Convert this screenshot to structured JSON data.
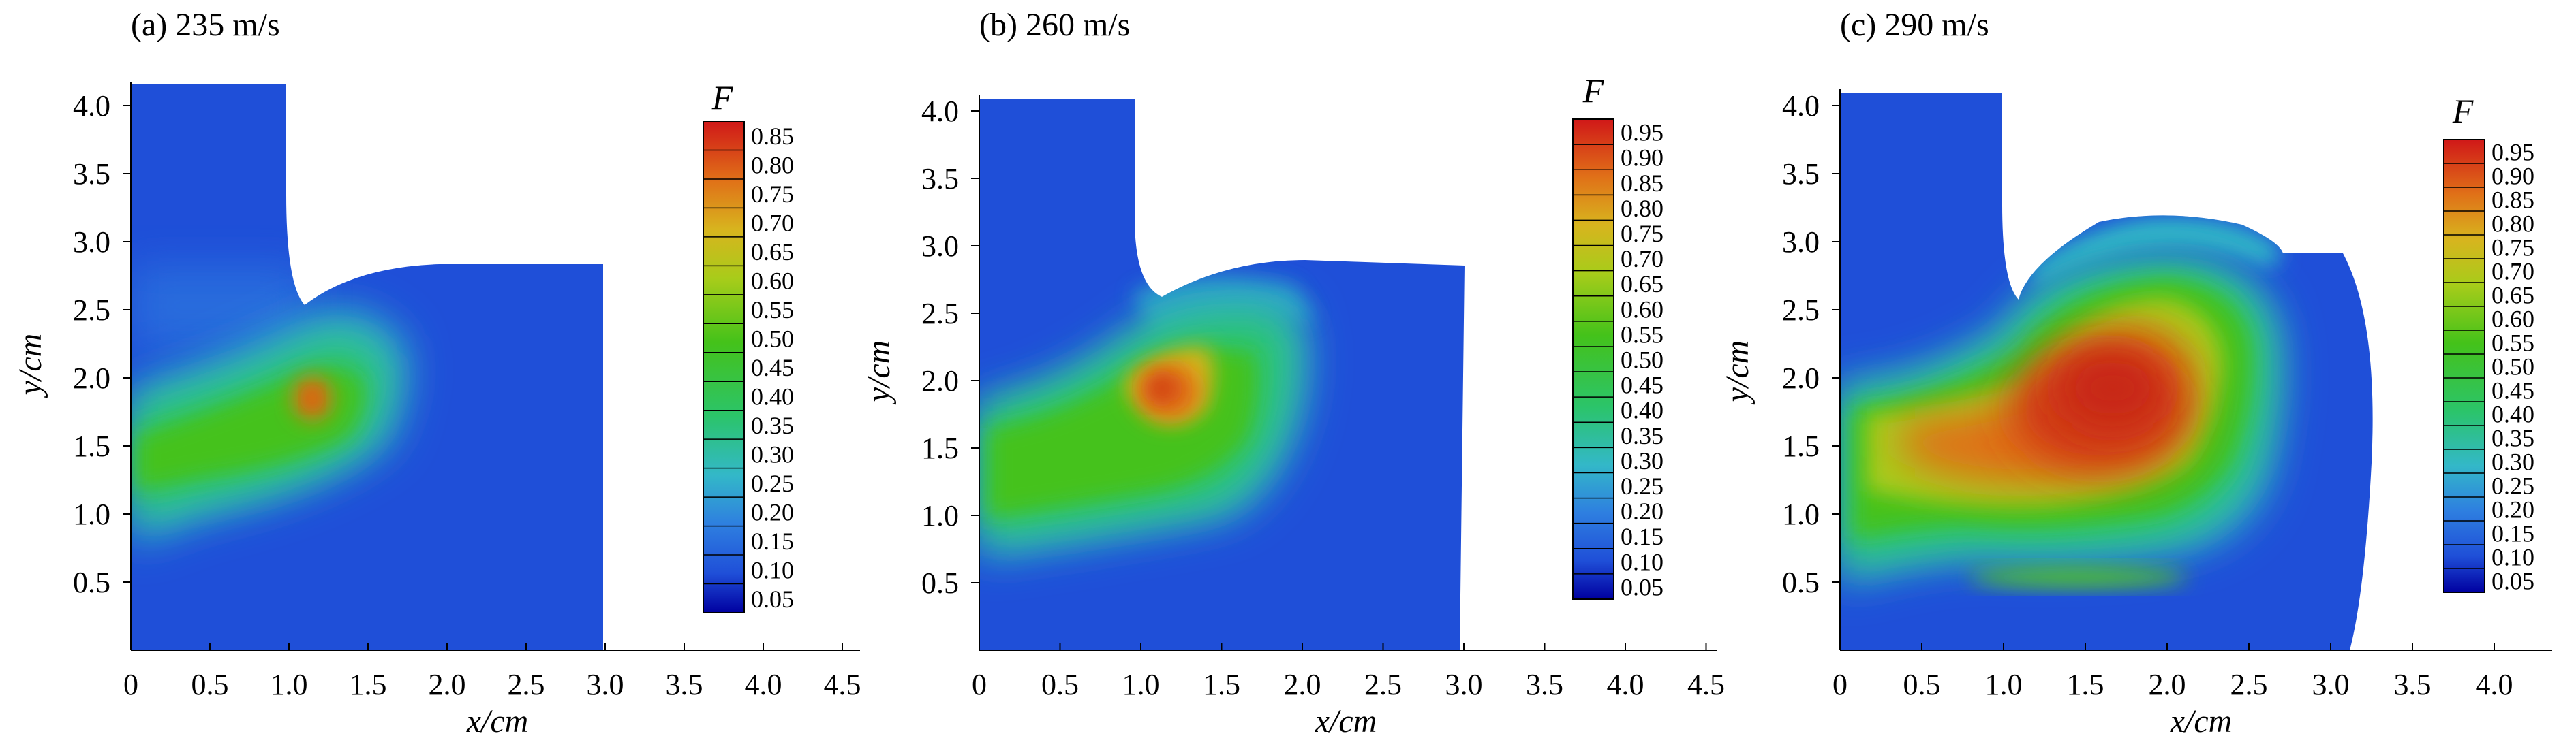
{
  "chart_data": [
    {
      "type": "heatmap",
      "title": "(a) 235 m/s",
      "xlabel": "x/cm",
      "ylabel": "y/cm",
      "xlim": [
        0,
        4.6
      ],
      "ylim": [
        0,
        4.15
      ],
      "xticks": [
        "0",
        "0.5",
        "1.0",
        "1.5",
        "2.0",
        "2.5",
        "3.0",
        "3.5",
        "4.0",
        "4.5"
      ],
      "yticks": [
        "0.5",
        "1.0",
        "1.5",
        "2.0",
        "2.5",
        "3.0",
        "3.5",
        "4.0"
      ],
      "colorbar": {
        "title": "F",
        "levels": [
          "0.85",
          "0.80",
          "0.75",
          "0.70",
          "0.65",
          "0.60",
          "0.55",
          "0.50",
          "0.45",
          "0.40",
          "0.35",
          "0.30",
          "0.25",
          "0.20",
          "0.15",
          "0.10",
          "0.05"
        ]
      },
      "field": {
        "background": 0.12,
        "peak_value": 0.85,
        "peak_location": [
          1.15,
          1.85
        ]
      }
    },
    {
      "type": "heatmap",
      "title": "(b) 260 m/s",
      "xlabel": "x/cm",
      "ylabel": "y/cm",
      "xlim": [
        0,
        4.6
      ],
      "ylim": [
        0,
        4.15
      ],
      "xticks": [
        "0",
        "0.5",
        "1.0",
        "1.5",
        "2.0",
        "2.5",
        "3.0",
        "3.5",
        "4.0",
        "4.5"
      ],
      "yticks": [
        "0.5",
        "1.0",
        "1.5",
        "2.0",
        "2.5",
        "3.0",
        "3.5",
        "4.0"
      ],
      "colorbar": {
        "title": "F",
        "levels": [
          "0.95",
          "0.90",
          "0.85",
          "0.80",
          "0.75",
          "0.70",
          "0.65",
          "0.60",
          "0.55",
          "0.50",
          "0.45",
          "0.40",
          "0.35",
          "0.30",
          "0.25",
          "0.20",
          "0.15",
          "0.10",
          "0.05"
        ]
      },
      "field": {
        "background": 0.12,
        "peak_value": 0.93,
        "peak_location": [
          1.15,
          1.95
        ]
      }
    },
    {
      "type": "heatmap",
      "title": "(c) 290 m/s",
      "xlabel": "x/cm",
      "ylabel": "y/cm",
      "xlim": [
        0,
        4.4
      ],
      "ylim": [
        0,
        4.15
      ],
      "xticks": [
        "0",
        "0.5",
        "1.0",
        "1.5",
        "2.0",
        "2.5",
        "3.0",
        "3.5",
        "4.0"
      ],
      "yticks": [
        "0.5",
        "1.0",
        "1.5",
        "2.0",
        "2.5",
        "3.0",
        "3.5",
        "4.0"
      ],
      "colorbar": {
        "title": "F",
        "levels": [
          "0.95",
          "0.90",
          "0.85",
          "0.80",
          "0.75",
          "0.70",
          "0.65",
          "0.60",
          "0.55",
          "0.50",
          "0.45",
          "0.40",
          "0.35",
          "0.30",
          "0.25",
          "0.20",
          "0.15",
          "0.10",
          "0.05"
        ]
      },
      "field": {
        "background": 0.12,
        "peak_value": 0.95,
        "peak_location": [
          1.45,
          2.0
        ]
      }
    }
  ]
}
